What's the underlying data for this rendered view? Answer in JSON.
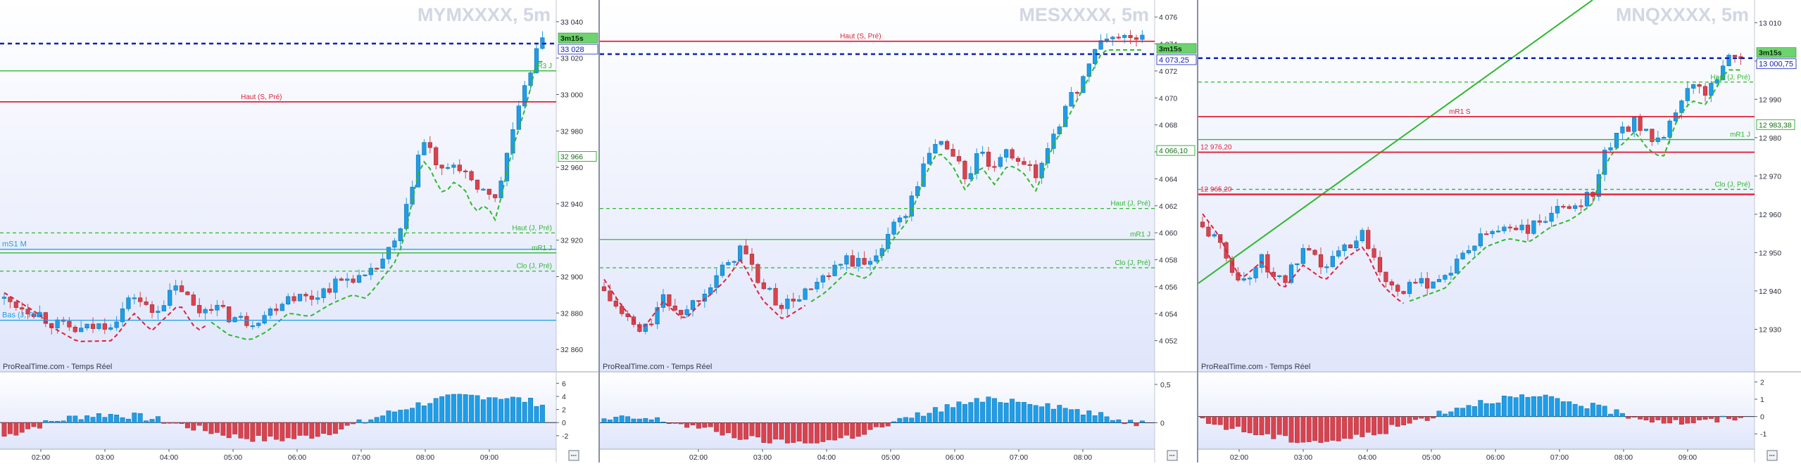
{
  "colors": {
    "up": "#1e9ee8",
    "down": "#d9434e",
    "bg_top": "#ffffff",
    "bg_bottom": "#e0e6fb",
    "blue_dash": "#1020b8",
    "green": "#2fb82f",
    "red": "#e0203a",
    "watermark": "#d3d7e3"
  },
  "x_ticks": [
    "02:00",
    "03:00",
    "04:00",
    "05:00",
    "06:00",
    "07:00",
    "08:00",
    "09:00"
  ],
  "panels": [
    {
      "symbol": "MYMXXXX, 5m",
      "source_label": "ProRealTime.com - Temps Réel",
      "countdown_badge": "3m15s",
      "price_badge": "33 028",
      "side_badges": [
        {
          "text": "32 966",
          "price": 32966,
          "color": "#2fb82f"
        }
      ],
      "price_ticks": [
        "33 040",
        "33 020",
        "33 000",
        "32 980",
        "32 960",
        "32 940",
        "32 920",
        "32 900",
        "32 880",
        "32 860"
      ],
      "osc_ticks": [
        "6",
        "4",
        "2",
        "0",
        "-2"
      ],
      "levels": [
        {
          "label": "",
          "price": 33028,
          "color": "#1020b8",
          "style": "dash-heavy",
          "label_side": "none"
        },
        {
          "label": "R3 J",
          "price": 33013,
          "color": "#2fb82f",
          "style": "solid",
          "label_side": "right"
        },
        {
          "label": "Haut (S, Pré)",
          "price": 32996,
          "color": "#e0203a",
          "style": "solid",
          "label_side": "center"
        },
        {
          "label": "Haut (J, Pré)",
          "price": 32924,
          "color": "#2fb82f",
          "style": "dash",
          "label_side": "right"
        },
        {
          "label": "mS1 M",
          "price": 32915,
          "color": "#1e9ee8",
          "style": "solid",
          "label_side": "left"
        },
        {
          "label": "mR1 J",
          "price": 32913,
          "color": "#2fb82f",
          "style": "solid",
          "label_side": "right"
        },
        {
          "label": "Clo (J, Pré)",
          "price": 32903,
          "color": "#2fb82f",
          "style": "dash",
          "label_side": "right"
        },
        {
          "label": "Bas (J, Pré)",
          "price": 32876,
          "color": "#1e9ee8",
          "style": "solid",
          "label_side": "left"
        }
      ]
    },
    {
      "symbol": "MESXXXX, 5m",
      "source_label": "ProRealTime.com - Temps Réel",
      "countdown_badge": "3m15s",
      "price_badge": "4 073,25",
      "side_badges": [
        {
          "text": "4 066,10",
          "price": 4066.1,
          "color": "#2fb82f"
        }
      ],
      "price_ticks": [
        "4 076",
        "4 074",
        "4 072",
        "4 070",
        "4 068",
        "4 066",
        "4 064",
        "4 062",
        "4 060",
        "4 058",
        "4 056",
        "4 054",
        "4 052"
      ],
      "osc_ticks": [
        "0,5",
        "0"
      ],
      "levels": [
        {
          "label": "Haut (S, Pré)",
          "price": 4074.2,
          "color": "#e0203a",
          "style": "solid",
          "label_side": "center"
        },
        {
          "label": "",
          "price": 4073.25,
          "color": "#1020b8",
          "style": "dash-heavy",
          "label_side": "none"
        },
        {
          "label": "Haut (J, Pré)",
          "price": 4061.8,
          "color": "#2fb82f",
          "style": "dash",
          "label_side": "right"
        },
        {
          "label": "mR1 J",
          "price": 4059.5,
          "color": "#2fb82f",
          "style": "solid",
          "label_side": "right"
        },
        {
          "label": "Clo (J, Pré)",
          "price": 4057.4,
          "color": "#2fb82f",
          "style": "dash",
          "label_side": "right"
        }
      ]
    },
    {
      "symbol": "MNQXXXX, 5m",
      "source_label": "ProRealTime.com - Temps Réel",
      "countdown_badge": "3m15s",
      "price_badge": "13 000,75",
      "side_badges": [
        {
          "text": "12 983,38",
          "price": 12983.4,
          "color": "#2fb82f"
        }
      ],
      "price_ticks": [
        "13 010",
        "13 000",
        "12 990",
        "12 980",
        "12 970",
        "12 960",
        "12 950",
        "12 940",
        "12 930"
      ],
      "osc_ticks": [
        "2",
        "1",
        "0",
        "-1"
      ],
      "levels": [
        {
          "label": "",
          "price": 13000.75,
          "color": "#1020b8",
          "style": "dash-heavy",
          "label_side": "none"
        },
        {
          "label": "Haut (J, Pré)",
          "price": 12994.5,
          "color": "#2fb82f",
          "style": "dash",
          "label_side": "right"
        },
        {
          "label": "mR1 S",
          "price": 12985.5,
          "color": "#e0203a",
          "style": "solid",
          "label_side": "center"
        },
        {
          "label": "mR1 J",
          "price": 12979.5,
          "color": "#2fb82f",
          "style": "solid",
          "label_side": "right"
        },
        {
          "label": "12 976,20",
          "price": 12976.2,
          "color": "#e0203a",
          "style": "solid",
          "label_side": "left-value"
        },
        {
          "label": "Clo (J, Pré)",
          "price": 12966.5,
          "color": "#2fb82f",
          "style": "dash",
          "label_side": "right"
        },
        {
          "label": "12 965,20",
          "price": 12965.2,
          "color": "#e0203a",
          "style": "solid-heavy",
          "label_side": "left-value"
        }
      ]
    }
  ]
}
